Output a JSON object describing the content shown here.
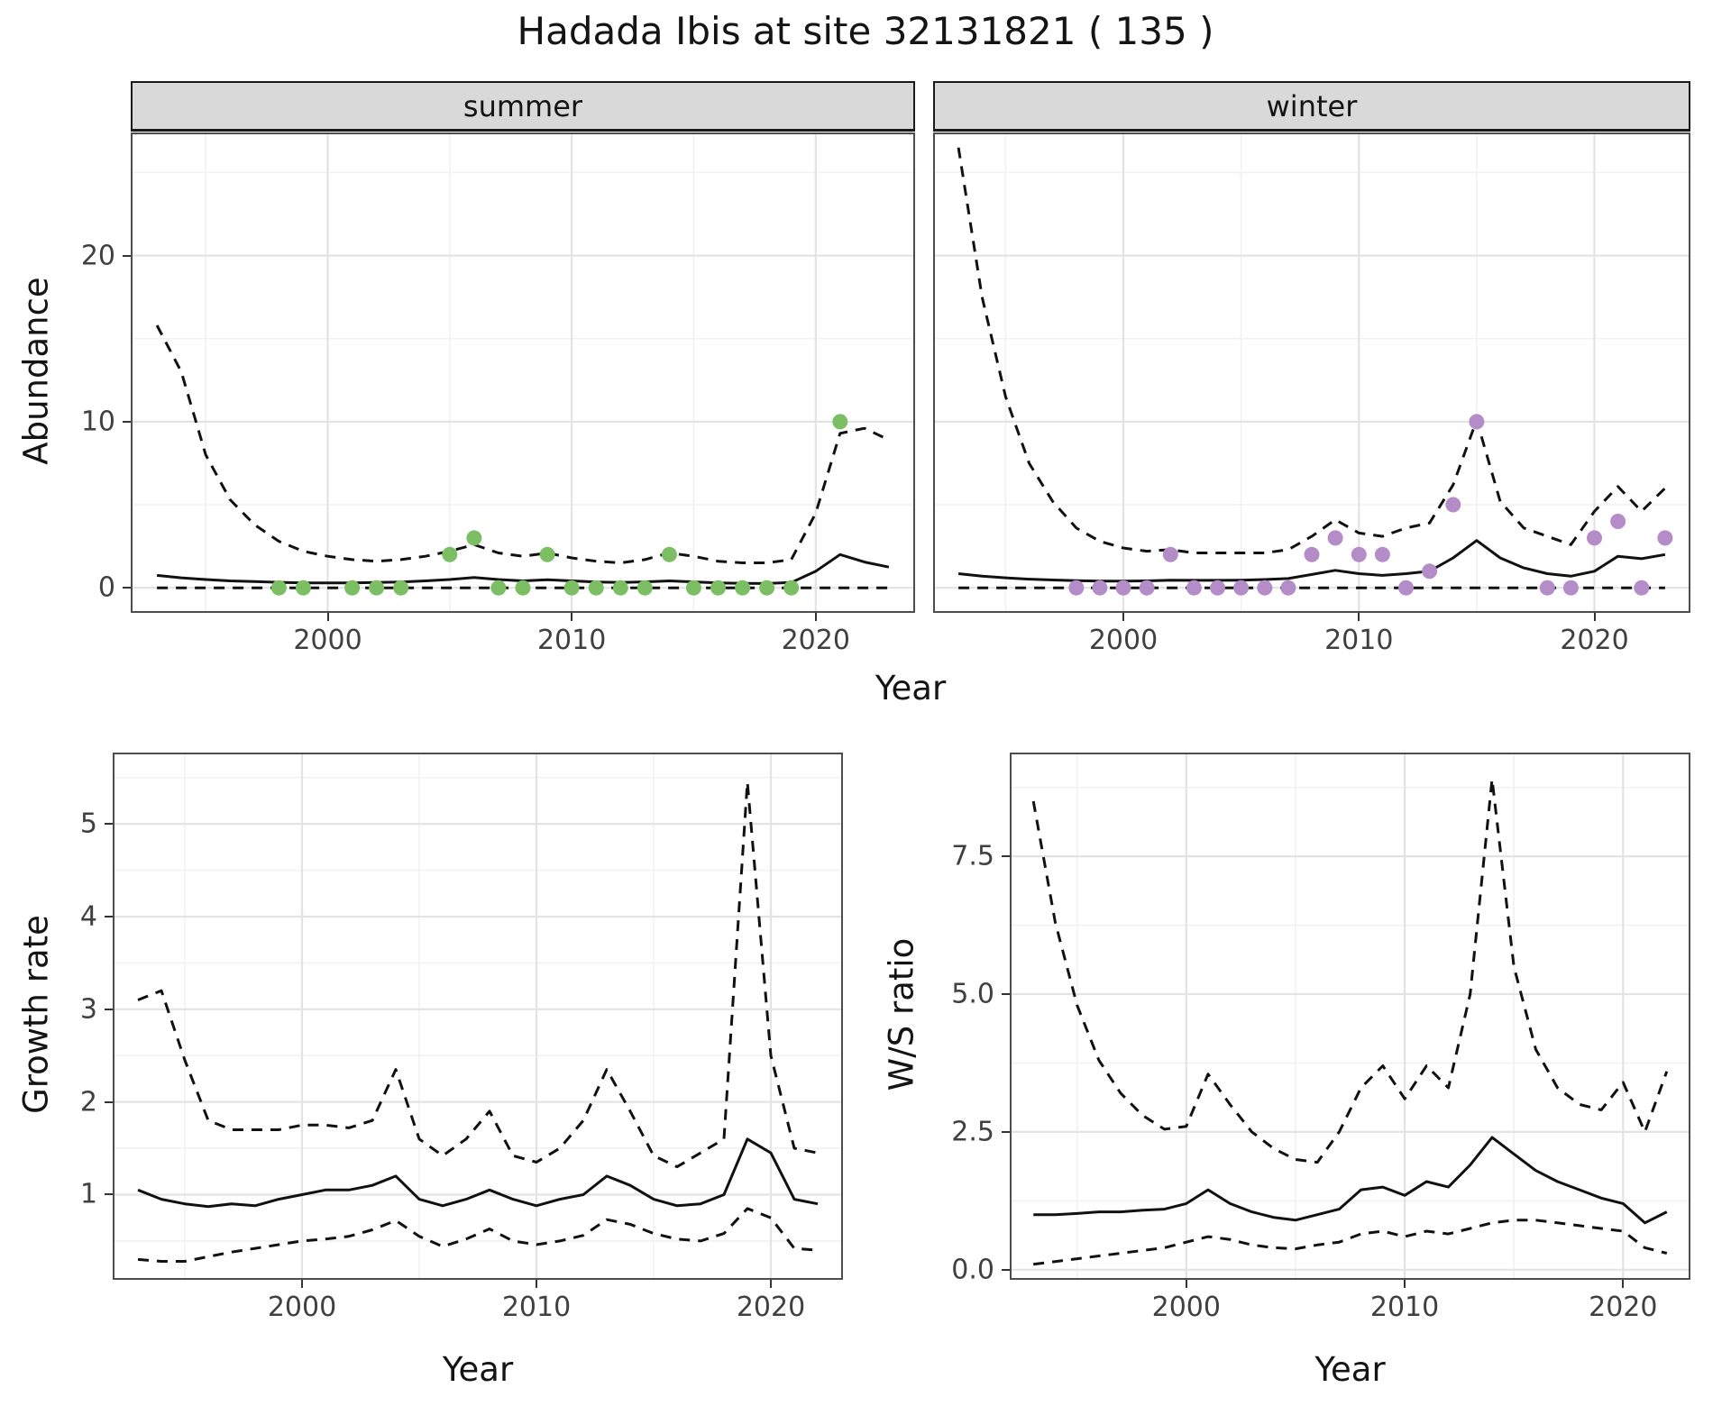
{
  "title": "Hadada Ibis at site 32131821 ( 135 )",
  "facets": [
    {
      "label": "summer"
    },
    {
      "label": "winter"
    }
  ],
  "axis_titles": {
    "abundance_y": "Abundance",
    "top_x": "Year",
    "growth_y": "Growth rate",
    "growth_x": "Year",
    "ws_y": "W/S ratio",
    "ws_x": "Year"
  },
  "style": {
    "summer_point_color": "#7cbe63",
    "winter_point_color": "#b48cc8",
    "line_color": "#111111",
    "grid_major_color": "#e3e3e3",
    "grid_minor_color": "#f1f1f1",
    "strip_bg": "#d9d9d9",
    "dash": "12 9"
  },
  "chart_data": [
    {
      "id": "abundance-summer",
      "type": "line",
      "facet": "summer",
      "xlabel": "Year",
      "ylabel": "Abundance",
      "xlim": [
        1992,
        2024
      ],
      "ylim": [
        -1.4,
        27.3
      ],
      "xticks": [
        2000,
        2010,
        2020
      ],
      "xtick_labels": [
        "2000",
        "2010",
        "2020"
      ],
      "yticks": [
        0,
        10,
        20
      ],
      "ytick_labels": [
        "0",
        "10",
        "20"
      ],
      "x": [
        1993,
        1994,
        1995,
        1996,
        1997,
        1998,
        1999,
        2000,
        2001,
        2002,
        2003,
        2004,
        2005,
        2006,
        2007,
        2008,
        2009,
        2010,
        2011,
        2012,
        2013,
        2014,
        2015,
        2016,
        2017,
        2018,
        2019,
        2020,
        2021,
        2022,
        2023
      ],
      "series": [
        {
          "name": "upper_ci",
          "style": "dashed",
          "values": [
            15.8,
            13.0,
            8.0,
            5.3,
            3.8,
            2.8,
            2.2,
            1.9,
            1.7,
            1.6,
            1.7,
            1.9,
            2.2,
            2.6,
            2.1,
            1.9,
            2.1,
            1.8,
            1.6,
            1.5,
            1.7,
            2.1,
            1.9,
            1.6,
            1.5,
            1.5,
            1.7,
            4.5,
            9.3,
            9.6,
            8.9
          ]
        },
        {
          "name": "fit",
          "style": "solid",
          "values": [
            0.75,
            0.6,
            0.5,
            0.42,
            0.38,
            0.33,
            0.3,
            0.3,
            0.3,
            0.32,
            0.35,
            0.42,
            0.5,
            0.62,
            0.5,
            0.42,
            0.48,
            0.42,
            0.35,
            0.32,
            0.36,
            0.42,
            0.36,
            0.3,
            0.27,
            0.26,
            0.32,
            1.0,
            2.0,
            1.55,
            1.25
          ]
        },
        {
          "name": "lower_ci",
          "style": "dashed",
          "values": [
            0,
            0,
            0,
            0,
            0,
            0,
            0,
            0,
            0,
            0,
            0,
            0,
            0,
            0,
            0,
            0,
            0,
            0,
            0,
            0,
            0,
            0,
            0,
            0,
            0,
            0,
            0,
            0,
            0,
            0,
            0
          ]
        }
      ],
      "points": {
        "name": "observed_counts",
        "color": "#7cbe63",
        "x": [
          1998,
          1999,
          2001,
          2002,
          2003,
          2005,
          2006,
          2007,
          2008,
          2009,
          2010,
          2011,
          2012,
          2013,
          2014,
          2015,
          2016,
          2017,
          2018,
          2019,
          2021
        ],
        "y": [
          0,
          0,
          0,
          0,
          0,
          2,
          3,
          0,
          0,
          2,
          0,
          0,
          0,
          0,
          2,
          0,
          0,
          0,
          0,
          0,
          10
        ]
      }
    },
    {
      "id": "abundance-winter",
      "type": "line",
      "facet": "winter",
      "xlabel": "Year",
      "ylabel": "Abundance",
      "xlim": [
        1992,
        2024
      ],
      "ylim": [
        -1.4,
        27.3
      ],
      "xticks": [
        2000,
        2010,
        2020
      ],
      "xtick_labels": [
        "2000",
        "2010",
        "2020"
      ],
      "yticks": [
        0,
        10,
        20
      ],
      "ytick_labels": [],
      "x": [
        1993,
        1994,
        1995,
        1996,
        1997,
        1998,
        1999,
        2000,
        2001,
        2002,
        2003,
        2004,
        2005,
        2006,
        2007,
        2008,
        2009,
        2010,
        2011,
        2012,
        2013,
        2014,
        2015,
        2016,
        2017,
        2018,
        2019,
        2020,
        2021,
        2022,
        2023
      ],
      "series": [
        {
          "name": "upper_ci",
          "style": "dashed",
          "values": [
            26.5,
            17.5,
            11.5,
            7.5,
            5.2,
            3.6,
            2.8,
            2.4,
            2.2,
            2.3,
            2.1,
            2.1,
            2.1,
            2.1,
            2.3,
            3.1,
            4.1,
            3.3,
            3.1,
            3.6,
            3.9,
            6.2,
            10.1,
            5.2,
            3.6,
            3.1,
            2.6,
            4.6,
            6.1,
            4.6,
            6.0
          ]
        },
        {
          "name": "fit",
          "style": "solid",
          "values": [
            0.85,
            0.7,
            0.6,
            0.52,
            0.47,
            0.43,
            0.4,
            0.4,
            0.42,
            0.46,
            0.45,
            0.45,
            0.46,
            0.5,
            0.56,
            0.8,
            1.05,
            0.85,
            0.75,
            0.85,
            1.0,
            1.8,
            2.85,
            1.8,
            1.2,
            0.85,
            0.7,
            1.0,
            1.9,
            1.75,
            2.0
          ]
        },
        {
          "name": "lower_ci",
          "style": "dashed",
          "values": [
            0,
            0,
            0,
            0,
            0,
            0,
            0,
            0,
            0,
            0,
            0,
            0,
            0,
            0,
            0,
            0,
            0,
            0,
            0,
            0,
            0,
            0,
            0,
            0,
            0,
            0,
            0,
            0,
            0,
            0,
            0
          ]
        }
      ],
      "points": {
        "name": "observed_counts",
        "color": "#b48cc8",
        "x": [
          1998,
          1999,
          2000,
          2001,
          2002,
          2003,
          2004,
          2005,
          2006,
          2007,
          2008,
          2009,
          2010,
          2011,
          2012,
          2013,
          2014,
          2015,
          2018,
          2019,
          2020,
          2021,
          2022,
          2023
        ],
        "y": [
          0,
          0,
          0,
          0,
          2,
          0,
          0,
          0,
          0,
          0,
          2,
          3,
          2,
          2,
          0,
          1,
          5,
          10,
          0,
          0,
          3,
          4,
          0,
          3
        ]
      }
    },
    {
      "id": "growth-rate",
      "type": "line",
      "xlabel": "Year",
      "ylabel": "Growth rate",
      "xlim": [
        1992,
        2023
      ],
      "ylim": [
        0.1,
        5.75
      ],
      "xticks": [
        2000,
        2010,
        2020
      ],
      "xtick_labels": [
        "2000",
        "2010",
        "2020"
      ],
      "yticks": [
        1,
        2,
        3,
        4,
        5
      ],
      "ytick_labels": [
        "1",
        "2",
        "3",
        "4",
        "5"
      ],
      "x": [
        1993,
        1994,
        1995,
        1996,
        1997,
        1998,
        1999,
        2000,
        2001,
        2002,
        2003,
        2004,
        2005,
        2006,
        2007,
        2008,
        2009,
        2010,
        2011,
        2012,
        2013,
        2014,
        2015,
        2016,
        2017,
        2018,
        2019,
        2020,
        2021,
        2022
      ],
      "series": [
        {
          "name": "upper_ci",
          "style": "dashed",
          "values": [
            3.1,
            3.2,
            2.45,
            1.8,
            1.7,
            1.7,
            1.7,
            1.75,
            1.75,
            1.72,
            1.8,
            2.35,
            1.6,
            1.42,
            1.6,
            1.9,
            1.42,
            1.35,
            1.5,
            1.8,
            2.35,
            1.9,
            1.42,
            1.3,
            1.45,
            1.6,
            5.45,
            2.5,
            1.5,
            1.45
          ]
        },
        {
          "name": "fit",
          "style": "solid",
          "values": [
            1.05,
            0.95,
            0.9,
            0.87,
            0.9,
            0.88,
            0.95,
            1.0,
            1.05,
            1.05,
            1.1,
            1.2,
            0.95,
            0.88,
            0.95,
            1.05,
            0.95,
            0.88,
            0.95,
            1.0,
            1.2,
            1.1,
            0.95,
            0.88,
            0.9,
            1.0,
            1.6,
            1.45,
            0.95,
            0.9
          ]
        },
        {
          "name": "lower_ci",
          "style": "dashed",
          "values": [
            0.3,
            0.28,
            0.28,
            0.33,
            0.38,
            0.42,
            0.46,
            0.5,
            0.52,
            0.55,
            0.62,
            0.72,
            0.55,
            0.44,
            0.52,
            0.63,
            0.5,
            0.46,
            0.5,
            0.56,
            0.73,
            0.68,
            0.58,
            0.52,
            0.5,
            0.58,
            0.85,
            0.75,
            0.42,
            0.4
          ]
        }
      ]
    },
    {
      "id": "ws-ratio",
      "type": "line",
      "xlabel": "Year",
      "ylabel": "W/S ratio",
      "xlim": [
        1992,
        2023
      ],
      "ylim": [
        -0.15,
        9.35
      ],
      "xticks": [
        2000,
        2010,
        2020
      ],
      "xtick_labels": [
        "2000",
        "2010",
        "2020"
      ],
      "yticks": [
        0,
        2.5,
        5,
        7.5
      ],
      "ytick_labels": [
        "0.0",
        "2.5",
        "5.0",
        "7.5"
      ],
      "x": [
        1993,
        1994,
        1995,
        1996,
        1997,
        1998,
        1999,
        2000,
        2001,
        2002,
        2003,
        2004,
        2005,
        2006,
        2007,
        2008,
        2009,
        2010,
        2011,
        2012,
        2013,
        2014,
        2015,
        2016,
        2017,
        2018,
        2019,
        2020,
        2021,
        2022
      ],
      "series": [
        {
          "name": "upper_ci",
          "style": "dashed",
          "values": [
            8.5,
            6.3,
            4.8,
            3.8,
            3.2,
            2.8,
            2.55,
            2.6,
            3.55,
            3.0,
            2.5,
            2.2,
            2.0,
            1.95,
            2.5,
            3.3,
            3.7,
            3.1,
            3.7,
            3.3,
            5.0,
            8.9,
            5.5,
            4.0,
            3.3,
            3.0,
            2.9,
            3.4,
            2.5,
            3.6
          ]
        },
        {
          "name": "fit",
          "style": "solid",
          "values": [
            1.0,
            1.0,
            1.02,
            1.05,
            1.05,
            1.08,
            1.1,
            1.2,
            1.45,
            1.2,
            1.05,
            0.95,
            0.9,
            1.0,
            1.1,
            1.45,
            1.5,
            1.35,
            1.6,
            1.5,
            1.9,
            2.4,
            2.1,
            1.8,
            1.6,
            1.45,
            1.3,
            1.2,
            0.85,
            1.05
          ]
        },
        {
          "name": "lower_ci",
          "style": "dashed",
          "values": [
            0.1,
            0.15,
            0.2,
            0.25,
            0.3,
            0.35,
            0.4,
            0.5,
            0.6,
            0.55,
            0.45,
            0.4,
            0.38,
            0.45,
            0.5,
            0.65,
            0.7,
            0.6,
            0.7,
            0.65,
            0.75,
            0.85,
            0.9,
            0.9,
            0.85,
            0.8,
            0.75,
            0.7,
            0.4,
            0.3
          ]
        }
      ]
    }
  ]
}
